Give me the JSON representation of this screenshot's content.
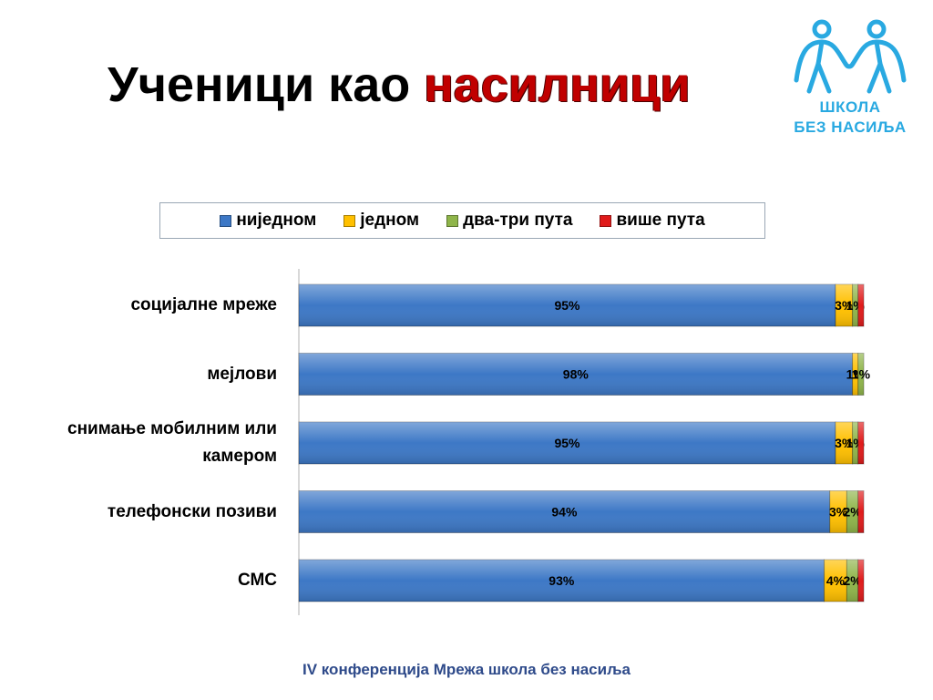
{
  "slide": {
    "title_part1": "Ученици као ",
    "title_part2": "насилници",
    "footer": "IV конференција Мрежа школа без насиља"
  },
  "logo": {
    "line1": "ШКОЛА",
    "line2": "БЕЗ НАСИЉА",
    "color": "#29a9e1"
  },
  "chart_data": {
    "type": "bar",
    "orientation": "horizontal",
    "stacked": true,
    "categories": [
      "социјалне мреже",
      "мејлови",
      "снимање мобилним или камером",
      "телефонски позиви",
      "СМС"
    ],
    "series": [
      {
        "name": "ниједном",
        "color": "#3d78c6",
        "values": [
          95,
          98,
          95,
          94,
          93
        ],
        "labels": [
          "95%",
          "98%",
          "95%",
          "94%",
          "93%"
        ]
      },
      {
        "name": "једном",
        "color": "#ffc000",
        "values": [
          3,
          1,
          3,
          3,
          4
        ],
        "labels": [
          "3%",
          "1%",
          "3%",
          "3%",
          "4%"
        ]
      },
      {
        "name": "два-три пута",
        "color": "#8fb54a",
        "values": [
          1,
          1,
          1,
          2,
          2
        ],
        "labels": [
          "1%",
          "1%",
          "1%",
          "2%",
          "2%"
        ]
      },
      {
        "name": "више пута",
        "color": "#e01b1b",
        "values": [
          1,
          0,
          1,
          1,
          1
        ],
        "labels": [
          "",
          "",
          "",
          "",
          ""
        ]
      }
    ],
    "xlim": [
      0,
      100
    ],
    "legend_position": "top",
    "grid": false
  }
}
